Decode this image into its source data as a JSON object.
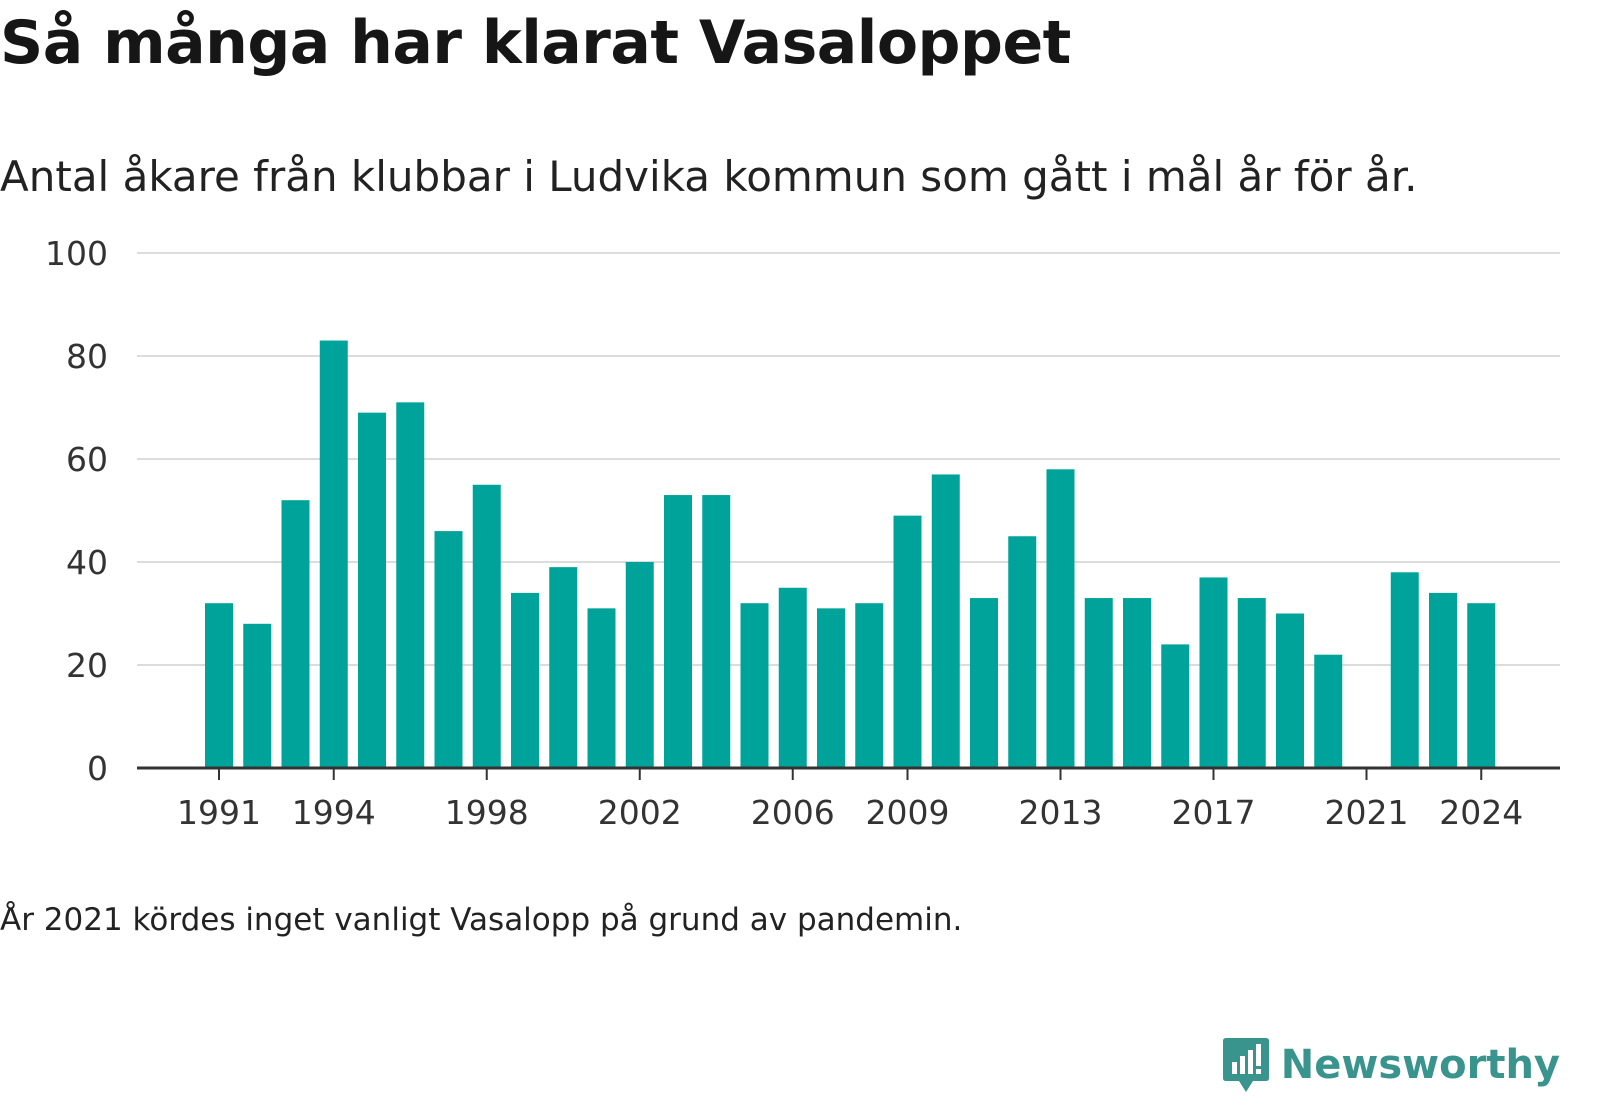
{
  "header": {
    "title": "Så många har klarat Vasaloppet",
    "subtitle": "Antal åkare från klubbar i Ludvika kommun som gått i mål år för år."
  },
  "footer": {
    "note": "År 2021 kördes inget vanligt Vasalopp på grund av pandemin.",
    "brand": "Newsworthy"
  },
  "colors": {
    "bar": "#00a39a",
    "grid": "#dcdcdc",
    "axis": "#333333",
    "brand": "#3a948e"
  },
  "icons": {
    "brand_logo": "newsworthy-logo-icon"
  },
  "chart_data": {
    "type": "bar",
    "title": "Så många har klarat Vasaloppet",
    "subtitle": "Antal åkare från klubbar i Ludvika kommun som gått i mål år för år.",
    "categories": [
      1991,
      1992,
      1993,
      1994,
      1995,
      1996,
      1997,
      1998,
      1999,
      2000,
      2001,
      2002,
      2003,
      2004,
      2005,
      2006,
      2007,
      2008,
      2009,
      2010,
      2011,
      2012,
      2013,
      2014,
      2015,
      2016,
      2017,
      2018,
      2019,
      2020,
      2021,
      2022,
      2023,
      2024
    ],
    "values": [
      32,
      28,
      52,
      83,
      69,
      71,
      46,
      55,
      34,
      39,
      31,
      40,
      53,
      53,
      32,
      35,
      31,
      32,
      49,
      57,
      33,
      45,
      58,
      33,
      33,
      24,
      37,
      33,
      30,
      22,
      null,
      38,
      34,
      32
    ],
    "x_tick_labels": [
      "1991",
      "1994",
      "1998",
      "2002",
      "2006",
      "2009",
      "2013",
      "2017",
      "2021",
      "2024"
    ],
    "y_ticks": [
      0,
      20,
      40,
      60,
      80,
      100
    ],
    "ylim": [
      0,
      100
    ],
    "xlabel": "",
    "ylabel": "",
    "grid": true,
    "legend": "none"
  }
}
